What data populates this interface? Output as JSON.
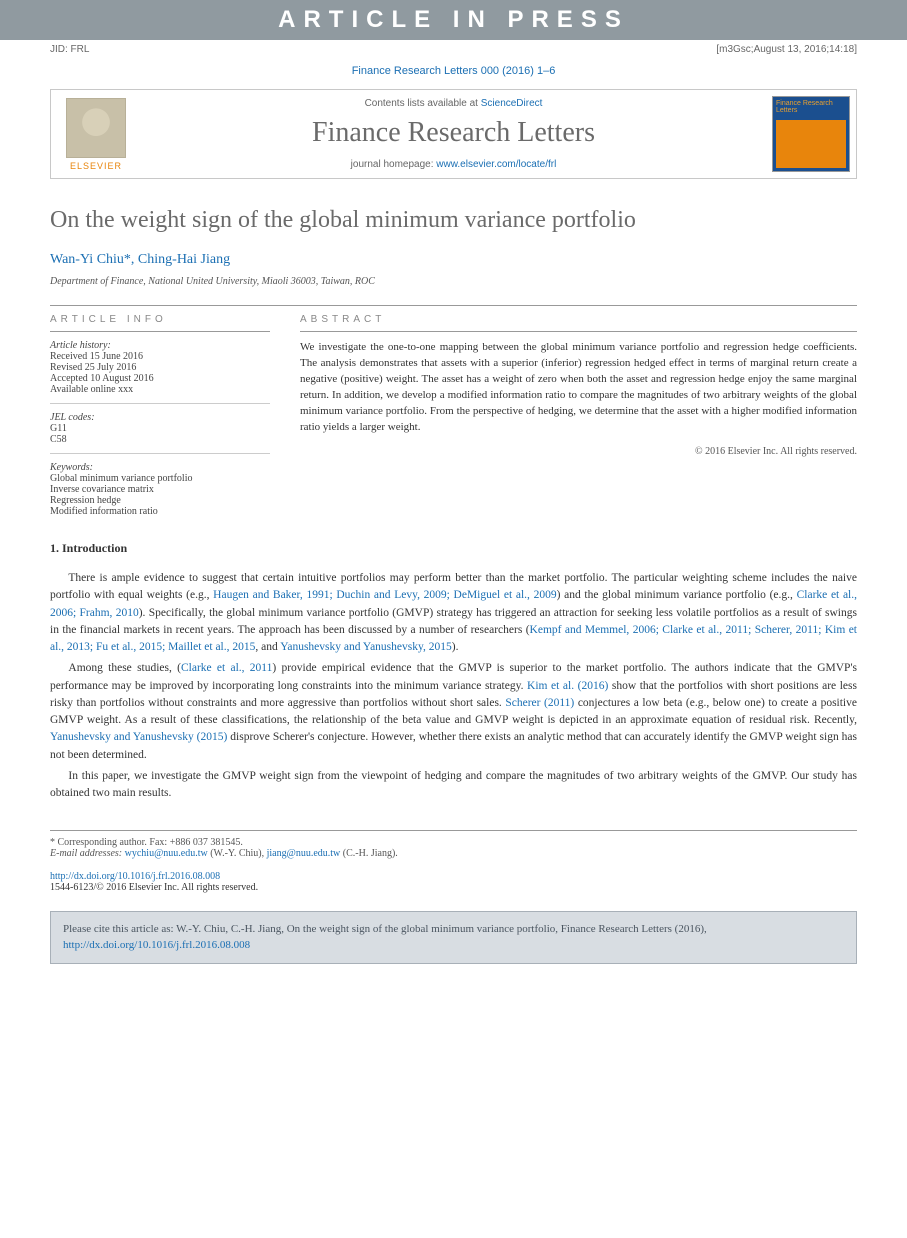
{
  "banner": "ARTICLE IN PRESS",
  "jid": {
    "left": "JID: FRL",
    "right": "[m3Gsc;August 13, 2016;14:18]"
  },
  "citation_top": "Finance Research Letters 000 (2016) 1–6",
  "header": {
    "contents_prefix": "Contents lists available at ",
    "contents_link": "ScienceDirect",
    "journal": "Finance Research Letters",
    "homepage_prefix": "journal homepage: ",
    "homepage_link": "www.elsevier.com/locate/frl",
    "elsevier": "ELSEVIER",
    "cover_title": "Finance Research Letters"
  },
  "article": {
    "title": "On the weight sign of the global minimum variance portfolio",
    "authors_html": "Wan-Yi Chiu*, Ching-Hai Jiang",
    "affiliation": "Department of Finance, National United University, Miaoli 36003, Taiwan, ROC"
  },
  "info": {
    "heading": "article info",
    "history_label": "Article history:",
    "received": "Received 15 June 2016",
    "revised": "Revised 25 July 2016",
    "accepted": "Accepted 10 August 2016",
    "online": "Available online xxx",
    "jel_label": "JEL codes:",
    "jel1": "G11",
    "jel2": "C58",
    "kw_label": "Keywords:",
    "kw1": "Global minimum variance portfolio",
    "kw2": "Inverse covariance matrix",
    "kw3": "Regression hedge",
    "kw4": "Modified information ratio"
  },
  "abstract": {
    "heading": "abstract",
    "text": "We investigate the one-to-one mapping between the global minimum variance portfolio and regression hedge coefficients. The analysis demonstrates that assets with a superior (inferior) regression hedged effect in terms of marginal return create a negative (positive) weight. The asset has a weight of zero when both the asset and regression hedge enjoy the same marginal return. In addition, we develop a modified information ratio to compare the magnitudes of two arbitrary weights of the global minimum variance portfolio. From the perspective of hedging, we determine that the asset with a higher modified information ratio yields a larger weight.",
    "copyright": "© 2016 Elsevier Inc. All rights reserved."
  },
  "section1": {
    "heading": "1. Introduction",
    "p1_a": "There is ample evidence to suggest that certain intuitive portfolios may perform better than the market portfolio. The particular weighting scheme includes the naive portfolio with equal weights (e.g., ",
    "p1_link1": "Haugen and Baker, 1991; Duchin and Levy, 2009; DeMiguel et al., 2009",
    "p1_b": ") and the global minimum variance portfolio (e.g., ",
    "p1_link2": "Clarke et al., 2006; Frahm, 2010",
    "p1_c": "). Specifically, the global minimum variance portfolio (GMVP) strategy has triggered an attraction for seeking less volatile portfolios as a result of swings in the financial markets in recent years. The approach has been discussed by a number of researchers (",
    "p1_link3": "Kempf and Memmel, 2006; Clarke et al., 2011; Scherer, 2011; Kim et al., 2013; Fu et al., 2015; Maillet et al., 2015",
    "p1_d": ", and ",
    "p1_link4": "Yanushevsky and Yanushevsky, 2015",
    "p1_e": ").",
    "p2_a": "Among these studies, (",
    "p2_link1": "Clarke et al., 2011",
    "p2_b": ") provide empirical evidence that the GMVP is superior to the market portfolio. The authors indicate that the GMVP's performance may be improved by incorporating long constraints into the minimum variance strategy. ",
    "p2_link2": "Kim et al. (2016)",
    "p2_c": " show that the portfolios with short positions are less risky than portfolios without constraints and more aggressive than portfolios without short sales. ",
    "p2_link3": "Scherer (2011)",
    "p2_d": " conjectures a low beta (e.g., below one) to create a positive GMVP weight. As a result of these classifications, the relationship of the beta value and GMVP weight is depicted in an approximate equation of residual risk. Recently, ",
    "p2_link4": "Yanushevsky and Yanushevsky (2015)",
    "p2_e": " disprove Scherer's conjecture. However, whether there exists an analytic method that can accurately identify the GMVP weight sign has not been determined.",
    "p3": "In this paper, we investigate the GMVP weight sign from the viewpoint of hedging and compare the magnitudes of two arbitrary weights of the GMVP. Our study has obtained two main results."
  },
  "footnotes": {
    "corr": "* Corresponding author. Fax: +886 037 381545.",
    "email_label": "E-mail addresses: ",
    "email1": "wychiu@nuu.edu.tw",
    "email1_who": " (W.-Y. Chiu), ",
    "email2": "jiang@nuu.edu.tw",
    "email2_who": " (C.-H. Jiang)."
  },
  "doi": {
    "link": "http://dx.doi.org/10.1016/j.frl.2016.08.008",
    "issn": "1544-6123/© 2016 Elsevier Inc. All rights reserved."
  },
  "citebox": {
    "text_a": "Please cite this article as: W.-Y. Chiu, C.-H. Jiang, On the weight sign of the global minimum variance portfolio, Finance Research Letters (2016), ",
    "link": "http://dx.doi.org/10.1016/j.frl.2016.08.008"
  },
  "colors": {
    "banner_bg": "#909aa0",
    "link": "#1b6fb3",
    "title_gray": "#6a6a6a",
    "elsevier_orange": "#e8850c",
    "citebox_bg": "#d8dde2"
  }
}
